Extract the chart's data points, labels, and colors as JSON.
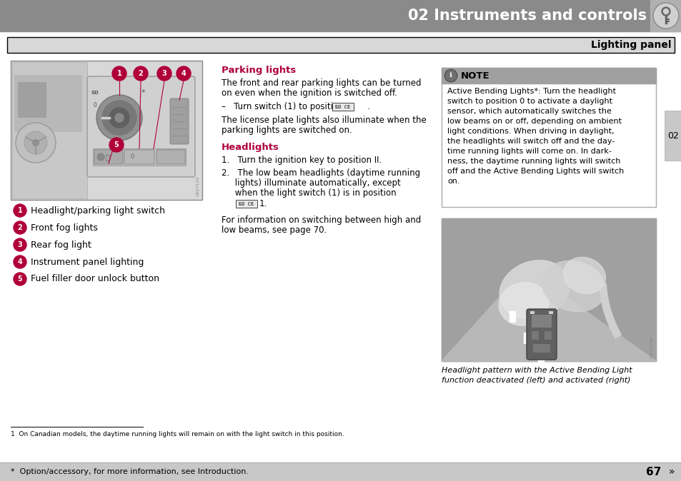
{
  "page_bg": "#ffffff",
  "header_bg": "#8a8a8a",
  "header_text": "02 Instruments and controls",
  "header_text_color": "#ffffff",
  "header_font_size": 15,
  "section_bar_bg": "#d8d8d8",
  "section_bar_border": "#000000",
  "section_title": "Lighting panel",
  "section_title_color": "#000000",
  "section_title_fontsize": 10,
  "tab_bg": "#c8c8c8",
  "tab_text": "02",
  "tab_text_color": "#000000",
  "parking_lights_title": "Parking lights",
  "parking_lights_color": "#b0003a",
  "parking_lights_body1": "The front and rear parking lights can be turned",
  "parking_lights_body2": "on even when the ignition is switched off.",
  "parking_lights_dash": "–   Turn switch (1) to position         .",
  "parking_lights_note1": "The license plate lights also illuminate when the",
  "parking_lights_note2": "parking lights are switched on.",
  "headlights_title": "Headlights",
  "headlights_color": "#b0003a",
  "headlights_1": "1.   Turn the ignition key to position II.",
  "headlights_2a": "2.   The low beam headlights (daytime running",
  "headlights_2b": "     lights) illuminate automatically, except",
  "headlights_2c": "     when the light switch (1) is in position",
  "headlights_note1": "For information on switching between high and",
  "headlights_note2": "low beams, see page 70.",
  "note_header_bg": "#a0a0a0",
  "note_header_text": "NOTE",
  "note_body_lines": [
    "Active Bending Lights*: Turn the headlight",
    "switch to position 0 to activate a daylight",
    "sensor, which automatically switches the",
    "low beams on or off, depending on ambient",
    "light conditions. When driving in daylight,",
    "the headlights will switch off and the day-",
    "time running lights will come on. In dark-",
    "ness, the daytime running lights will switch",
    "off and the Active Bending Lights will switch",
    "on."
  ],
  "caption_line1": "Headlight pattern with the Active Bending Light",
  "caption_line2": "function deactivated (left) and activated (right)",
  "footnote_text": "1  On Canadian models, the daytime running lights will remain on with the light switch in this position.",
  "footer_bg": "#c8c8c8",
  "footer_text": "*  Option/accessory, for more information, see Introduction.",
  "footer_page": "67",
  "item1_label": "Headlight/parking light switch",
  "item2_label": "Front fog lights",
  "item3_label": "Rear fog light",
  "item4_label": "Instrument panel lighting",
  "item5_label": "Fuel filler door unlock button",
  "bullet_color": "#b0003a",
  "bullet_text_color": "#ffffff",
  "img_bg": "#d8d8d8",
  "img_inner_bg": "#c8c8c8",
  "dial_outer_color": "#888888",
  "dial_inner_color": "#707070",
  "dial_knob_color": "#505050"
}
